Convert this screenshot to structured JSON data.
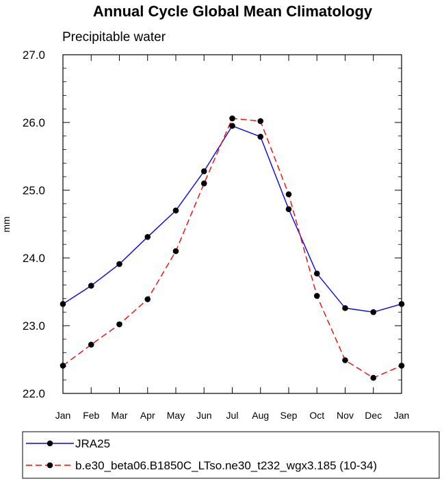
{
  "chart_data": {
    "type": "line",
    "title": "Annual Cycle Global Mean Climatology",
    "subtitle": "Precipitable water",
    "xlabel": "",
    "ylabel": "mm",
    "categories": [
      "Jan",
      "Feb",
      "Mar",
      "Apr",
      "May",
      "Jun",
      "Jul",
      "Aug",
      "Sep",
      "Oct",
      "Nov",
      "Dec",
      "Jan"
    ],
    "ylim": [
      22.0,
      27.0
    ],
    "yticks": [
      "22.0",
      "23.0",
      "24.0",
      "25.0",
      "26.0",
      "27.0"
    ],
    "grid": false,
    "legend_position": "bottom",
    "series": [
      {
        "name": "JRA25",
        "color": "#0000ff",
        "line_style": "solid",
        "marker": "filled-circle",
        "values": [
          23.32,
          23.59,
          23.91,
          24.31,
          24.7,
          25.28,
          25.95,
          25.79,
          24.72,
          23.77,
          23.26,
          23.2,
          23.32
        ]
      },
      {
        "name": "b.e30_beta06.B1850C_LTso.ne30_t232_wgx3.185 (10-34)",
        "color": "#ff0000",
        "line_style": "dashed",
        "marker": "filled-circle",
        "values": [
          22.41,
          22.72,
          23.02,
          23.39,
          24.1,
          25.1,
          26.06,
          26.02,
          24.94,
          23.44,
          22.49,
          22.23,
          22.41
        ]
      }
    ]
  }
}
